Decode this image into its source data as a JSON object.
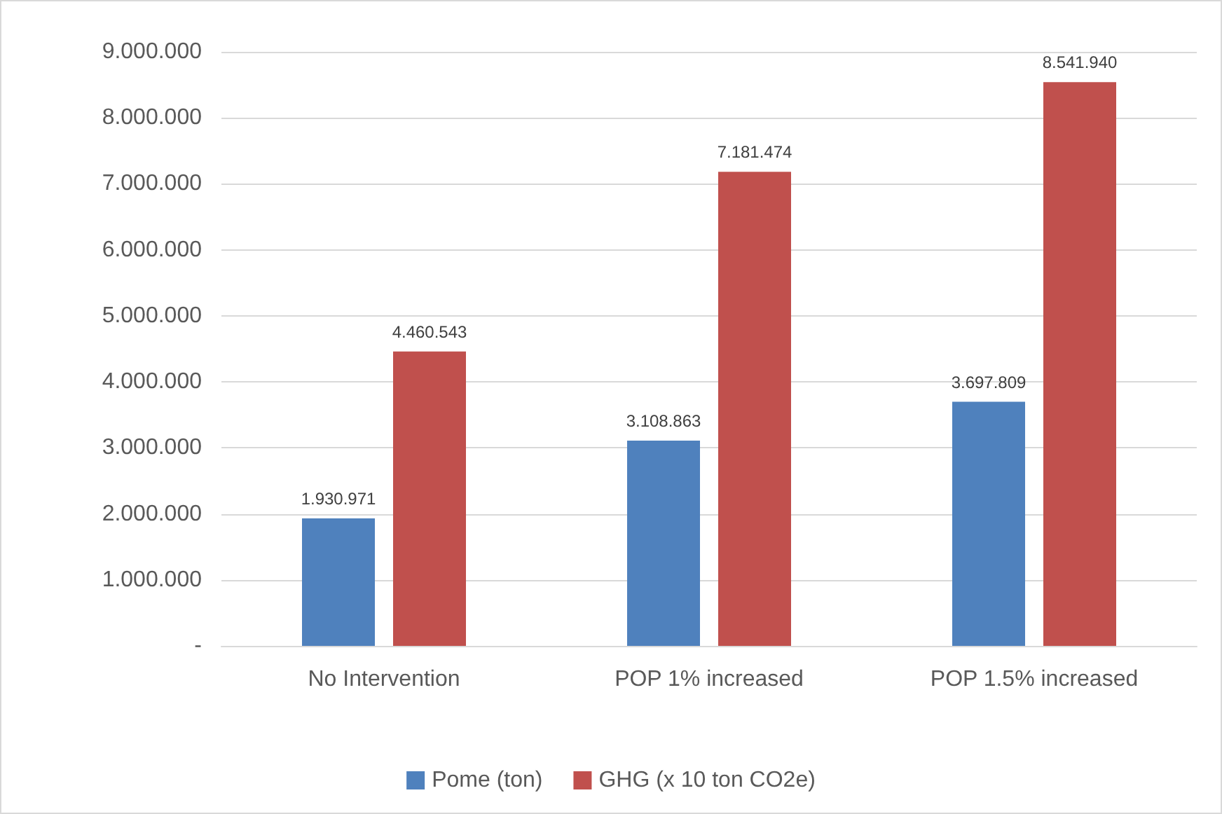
{
  "chart_data": {
    "type": "bar",
    "categories": [
      "No Intervention",
      "POP 1% increased",
      "POP 1.5% increased"
    ],
    "series": [
      {
        "name": "Pome (ton)",
        "color": "#4f81bd",
        "values": [
          1930971,
          3108863,
          3697809
        ],
        "value_labels": [
          "1.930.971",
          "3.108.863",
          "3.697.809"
        ]
      },
      {
        "name": "GHG (x 10 ton CO2e)",
        "color": "#c0504d",
        "values": [
          4460543,
          7181474,
          8541940
        ],
        "value_labels": [
          "4.460.543",
          "7.181.474",
          "8.541.940"
        ]
      }
    ],
    "ylim": [
      0,
      9000000
    ],
    "yticks": [
      {
        "value": 0,
        "label": "-"
      },
      {
        "value": 1000000,
        "label": "1.000.000"
      },
      {
        "value": 2000000,
        "label": "2.000.000"
      },
      {
        "value": 3000000,
        "label": "3.000.000"
      },
      {
        "value": 4000000,
        "label": "4.000.000"
      },
      {
        "value": 5000000,
        "label": "5.000.000"
      },
      {
        "value": 6000000,
        "label": "6.000.000"
      },
      {
        "value": 7000000,
        "label": "7.000.000"
      },
      {
        "value": 8000000,
        "label": "8.000.000"
      },
      {
        "value": 9000000,
        "label": "9.000.000"
      }
    ],
    "grid": "y",
    "legend": "bottom"
  }
}
